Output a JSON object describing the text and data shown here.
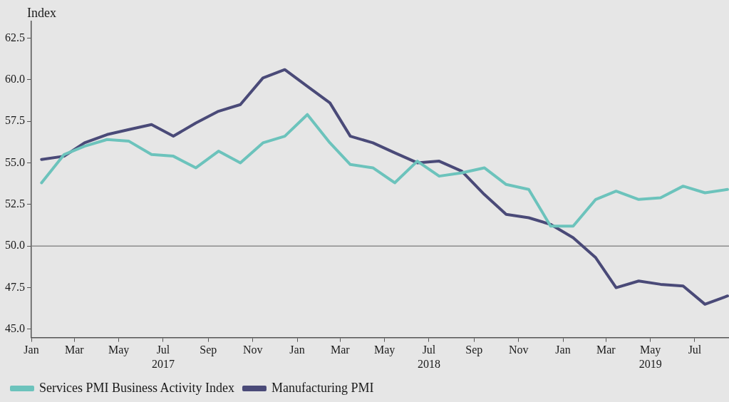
{
  "chart_data": {
    "type": "line",
    "ylabel": "Index",
    "x": [
      "2017-01-15",
      "2017-02-15",
      "2017-03-15",
      "2017-04-15",
      "2017-05-15",
      "2017-06-15",
      "2017-07-15",
      "2017-08-15",
      "2017-09-15",
      "2017-10-15",
      "2017-11-15",
      "2017-12-15",
      "2018-01-15",
      "2018-02-15",
      "2018-03-15",
      "2018-04-15",
      "2018-05-15",
      "2018-06-15",
      "2018-07-15",
      "2018-08-15",
      "2018-09-15",
      "2018-10-15",
      "2018-11-15",
      "2018-12-15",
      "2019-01-15",
      "2019-02-15",
      "2019-03-15",
      "2019-04-15",
      "2019-05-15",
      "2019-06-15",
      "2019-07-15",
      "2019-08-15"
    ],
    "series": [
      {
        "name": "Services PMI Business Activity Index",
        "color": "#6cc3bc",
        "values": [
          53.8,
          55.5,
          56.0,
          56.4,
          56.3,
          55.5,
          55.4,
          54.7,
          55.7,
          55.0,
          56.2,
          56.6,
          57.9,
          56.2,
          54.9,
          54.7,
          53.8,
          55.1,
          54.2,
          54.4,
          54.7,
          53.7,
          53.4,
          51.2,
          51.2,
          52.8,
          53.3,
          52.8,
          52.9,
          53.6,
          53.2,
          53.4
        ]
      },
      {
        "name": "Manufacturing PMI",
        "color": "#4a4a78",
        "values": [
          55.2,
          55.4,
          56.2,
          56.7,
          57.0,
          57.3,
          56.6,
          57.4,
          58.1,
          58.5,
          60.1,
          60.6,
          59.6,
          58.6,
          56.6,
          56.2,
          55.6,
          55.0,
          55.1,
          54.5,
          53.1,
          51.9,
          51.7,
          51.3,
          50.5,
          49.3,
          47.5,
          47.9,
          47.7,
          47.6,
          46.5,
          47.0
        ]
      }
    ],
    "xlim": [
      "2017-01-01",
      "2019-08-17"
    ],
    "xticks": [
      {
        "value": "2017-01-01",
        "label": "Jan"
      },
      {
        "value": "2017-03-01",
        "label": "Mar"
      },
      {
        "value": "2017-05-01",
        "label": "May"
      },
      {
        "value": "2017-07-01",
        "label": "Jul\n2017"
      },
      {
        "value": "2017-09-01",
        "label": "Sep"
      },
      {
        "value": "2017-11-01",
        "label": "Nov"
      },
      {
        "value": "2018-01-01",
        "label": "Jan"
      },
      {
        "value": "2018-03-01",
        "label": "Mar"
      },
      {
        "value": "2018-05-01",
        "label": "May"
      },
      {
        "value": "2018-07-01",
        "label": "Jul\n2018"
      },
      {
        "value": "2018-09-01",
        "label": "Sep"
      },
      {
        "value": "2018-11-01",
        "label": "Nov"
      },
      {
        "value": "2019-01-01",
        "label": "Jan"
      },
      {
        "value": "2019-03-01",
        "label": "Mar"
      },
      {
        "value": "2019-05-01",
        "label": "May\n2019"
      },
      {
        "value": "2019-07-01",
        "label": "Jul"
      }
    ],
    "ylim": [
      44.5,
      63.5
    ],
    "yticks": [
      {
        "value": 45,
        "label": "45.0"
      },
      {
        "value": 47.5,
        "label": "47.5"
      },
      {
        "value": 50,
        "label": "50.0"
      },
      {
        "value": 52.5,
        "label": "52.5"
      },
      {
        "value": 55,
        "label": "55.0"
      },
      {
        "value": 57.5,
        "label": "57.5"
      },
      {
        "value": 60,
        "label": "60.0"
      },
      {
        "value": 62.5,
        "label": "62.5"
      }
    ],
    "ref_lines": [
      {
        "axis": "y",
        "value": 50,
        "color": "#8c8c8c"
      }
    ],
    "grid": false,
    "legend": "bottom left",
    "marker": "none",
    "line_style": "solid"
  }
}
